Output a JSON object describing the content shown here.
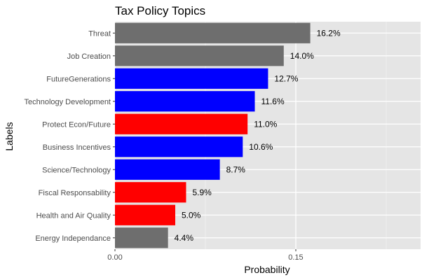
{
  "chart_data": {
    "type": "bar",
    "orientation": "horizontal",
    "title": "Tax Policy Topics",
    "xlabel": "Probability",
    "ylabel": "Labels",
    "xlim": [
      0,
      0.2535
    ],
    "x_ticks": [
      0.0,
      0.15
    ],
    "x_tick_labels": [
      "0.00",
      "0.15"
    ],
    "categories": [
      "Threat",
      "Job Creation",
      "FutureGenerations",
      "Technology Development",
      "Protect Econ/Future",
      "Business Incentives",
      "Science/Technology",
      "Fiscal Responsability",
      "Health and Air Quality",
      "Energy Independance"
    ],
    "values": [
      0.162,
      0.14,
      0.127,
      0.116,
      0.11,
      0.106,
      0.087,
      0.059,
      0.05,
      0.044
    ],
    "value_labels": [
      "16.2%",
      "14.0%",
      "12.7%",
      "11.6%",
      "11.0%",
      "10.6%",
      "8.7%",
      "5.9%",
      "5.0%",
      "4.4%"
    ],
    "bar_colors": [
      "#6e6e6e",
      "#6e6e6e",
      "#0000ff",
      "#0000ff",
      "#ff0000",
      "#0000ff",
      "#0000ff",
      "#ff0000",
      "#ff0000",
      "#6e6e6e"
    ],
    "panel_background": "#e5e5e5",
    "grid": true,
    "legend": "none"
  }
}
